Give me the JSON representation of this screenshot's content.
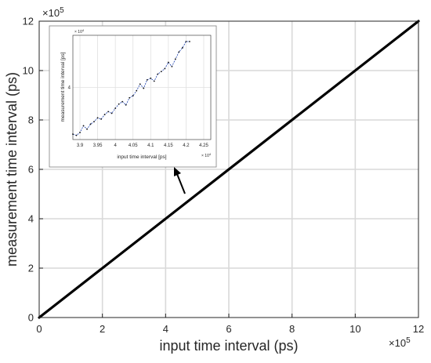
{
  "chart_data": [
    {
      "type": "line",
      "xlabel": "input time interval (ps)",
      "ylabel": "measurement time interval (ps)",
      "xlim": [
        0,
        12
      ],
      "ylim": [
        0,
        12
      ],
      "x_ticks": [
        "0",
        "2",
        "4",
        "6",
        "8",
        "10",
        "12"
      ],
      "y_ticks": [
        "0",
        "2",
        "4",
        "6",
        "8",
        "10",
        "12"
      ],
      "x_multiplier": [
        "×10",
        "5"
      ],
      "y_multiplier": [
        "×10",
        "5"
      ],
      "grid": true,
      "series": [
        {
          "x": [
            0,
            12
          ],
          "y": [
            0,
            12
          ],
          "color": "#000000"
        }
      ]
    },
    {
      "type": "line",
      "role": "inset (zoomed view)",
      "xlabel": "input time interval [ps]",
      "ylabel": "measurement time interval [ps]",
      "xlim": [
        3.88,
        4.27
      ],
      "ylim": [
        3.875,
        4.125
      ],
      "x_ticks": [
        "3.9",
        "3.95",
        "4",
        "4.05",
        "4.1",
        "4.15",
        "4.2",
        "4.25"
      ],
      "y_ticks": [
        "4"
      ],
      "x_multiplier": [
        "× 10",
        "4"
      ],
      "y_multiplier": [
        "× 10",
        "4"
      ],
      "grid": true,
      "series": [
        {
          "color": "#1a3fb0",
          "x": [
            3.88,
            3.89,
            3.9,
            3.91,
            3.92,
            3.93,
            3.94,
            3.95,
            3.96,
            3.97,
            3.98,
            3.99,
            4.0,
            4.01,
            4.02,
            4.03,
            4.04,
            4.05,
            4.06,
            4.07,
            4.08,
            4.09,
            4.1,
            4.11,
            4.12,
            4.13,
            4.14,
            4.15,
            4.16,
            4.17,
            4.18,
            4.19,
            4.2,
            4.21
          ],
          "y": [
            3.888,
            3.885,
            3.892,
            3.908,
            3.9,
            3.912,
            3.918,
            3.927,
            3.924,
            3.935,
            3.942,
            3.938,
            3.95,
            3.96,
            3.966,
            3.958,
            3.975,
            3.98,
            3.992,
            4.008,
            3.998,
            4.018,
            4.022,
            4.015,
            4.032,
            4.038,
            4.045,
            4.06,
            4.05,
            4.068,
            4.085,
            4.095,
            4.11,
            4.11
          ]
        }
      ]
    }
  ]
}
